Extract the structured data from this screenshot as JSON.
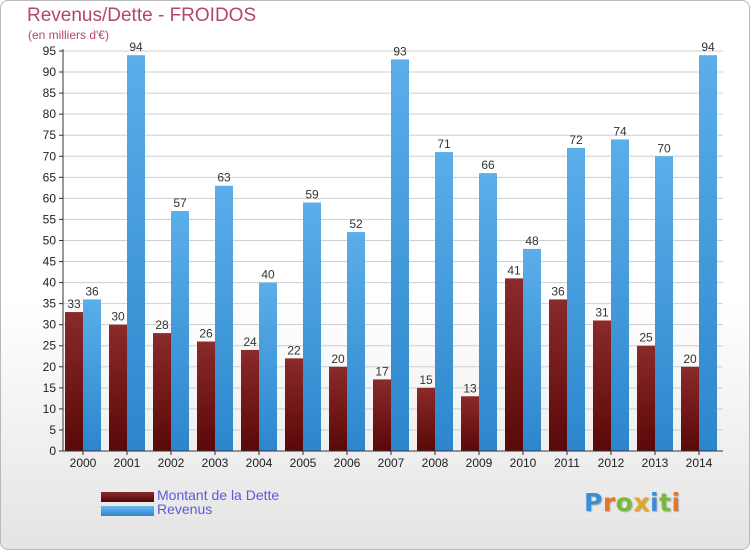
{
  "colors": {
    "debt": "#7a1717",
    "revenue": "#4fa8e8",
    "title": "#b24869",
    "legend_text": "#5a5ae0",
    "axis": "#333333",
    "grid": "#cfcfcf"
  },
  "legend": {
    "debt_label": "Montant de la Dette",
    "revenue_label": "Revenus"
  },
  "logo": {
    "text": "Proxiti"
  },
  "chart_data": {
    "type": "bar",
    "title": "Revenus/Dette - FROIDOS",
    "subtitle": "(en milliers d'€)",
    "xlabel": "",
    "ylabel": "",
    "ylim": [
      0,
      95
    ],
    "ytick_step": 5,
    "grid": true,
    "legend_position": "bottom-left",
    "categories": [
      "2000",
      "2001",
      "2002",
      "2003",
      "2004",
      "2005",
      "2006",
      "2007",
      "2008",
      "2009",
      "2010",
      "2011",
      "2012",
      "2013",
      "2014"
    ],
    "series": [
      {
        "name": "Montant de la Dette",
        "values": [
          33,
          30,
          28,
          26,
          24,
          22,
          20,
          17,
          15,
          13,
          41,
          36,
          31,
          25,
          20
        ]
      },
      {
        "name": "Revenus",
        "values": [
          36,
          94,
          57,
          63,
          40,
          59,
          52,
          93,
          71,
          66,
          48,
          72,
          74,
          70,
          94
        ]
      }
    ]
  }
}
